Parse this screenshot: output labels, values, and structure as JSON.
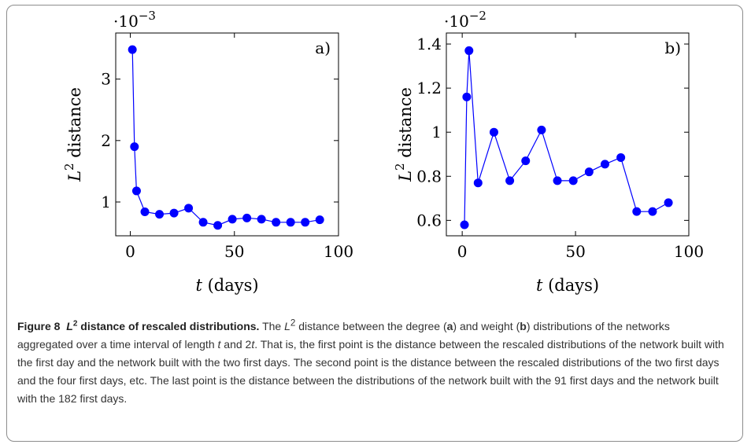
{
  "chart_data": [
    {
      "type": "line",
      "panel_label": "a)",
      "scale_factor": "·10⁻³",
      "scale_base": "·10",
      "scale_exp": "−3",
      "xlabel": "t",
      "xlabel_unit": "(days)",
      "ylabel": "L",
      "ylabel_exp": "2",
      "ylabel_rest": "distance",
      "xlim": [
        -7,
        100
      ],
      "ylim": [
        0.45,
        3.75
      ],
      "xticks": [
        0,
        50,
        100
      ],
      "yticks": [
        1,
        2,
        3
      ],
      "ytick_labels": [
        "1",
        "2",
        "3"
      ],
      "color": "#0000ff",
      "x": [
        1,
        2,
        3,
        7,
        14,
        21,
        28,
        35,
        42,
        49,
        56,
        63,
        70,
        77,
        84,
        91
      ],
      "y": [
        3.48,
        1.9,
        1.18,
        0.84,
        0.8,
        0.82,
        0.9,
        0.67,
        0.62,
        0.72,
        0.74,
        0.72,
        0.67,
        0.67,
        0.67,
        0.71
      ]
    },
    {
      "type": "line",
      "panel_label": "b)",
      "scale_factor": "·10⁻²",
      "scale_base": "·10",
      "scale_exp": "−2",
      "xlabel": "t",
      "xlabel_unit": "(days)",
      "ylabel": "L",
      "ylabel_exp": "2",
      "ylabel_rest": "distance",
      "xlim": [
        -7,
        100
      ],
      "ylim": [
        0.53,
        1.45
      ],
      "xticks": [
        0,
        50,
        100
      ],
      "yticks": [
        0.6,
        0.8,
        1.0,
        1.2,
        1.4
      ],
      "ytick_labels": [
        "0.6",
        "0.8",
        "1",
        "1.2",
        "1.4"
      ],
      "color": "#0000ff",
      "x": [
        1,
        2,
        3,
        7,
        14,
        21,
        28,
        35,
        42,
        49,
        56,
        63,
        70,
        77,
        84,
        91
      ],
      "y": [
        0.58,
        1.16,
        1.37,
        0.77,
        1.0,
        0.78,
        0.87,
        1.01,
        0.78,
        0.78,
        0.82,
        0.855,
        0.885,
        0.64,
        0.64,
        0.68
      ]
    }
  ],
  "caption": {
    "figure_number": "Figure 8",
    "title_symbol": "L",
    "title_sup": "2",
    "title_rest": " distance of rescaled distributions.",
    "body_html": " The <i>L</i><sup>2</sup> distance between the degree (<b>a</b>) and weight (<b>b</b>) distributions of the networks aggregated over a time interval of length <i>t</i> and 2<i>t</i>. That is, the first point is the distance between the rescaled distributions of the network built with the first day and the network built with the two first days. The second point is the distance between the rescaled distributions of the two first days and the four first days, etc. The last point is the distance between the distributions of the network built with the 91 first days and the network built with the 182 first days."
  }
}
